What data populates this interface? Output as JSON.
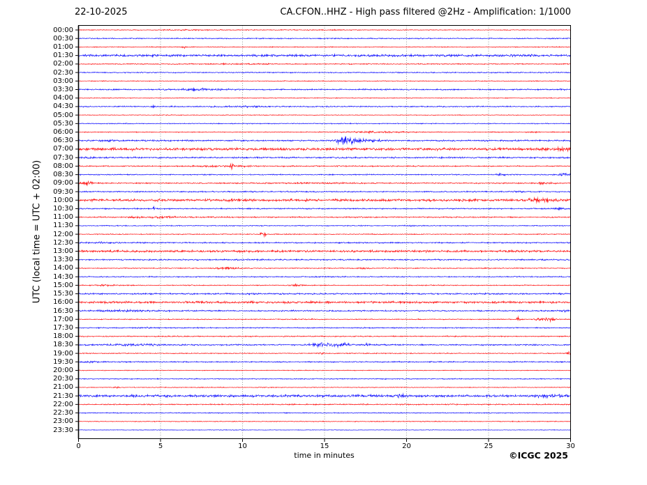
{
  "header": {
    "date": "22-10-2025",
    "title": "CA.CFON..HHZ - High pass filtered @2Hz - Amplification: 1/1000"
  },
  "axes": {
    "y_label": "UTC (local time = UTC + 02:00)",
    "x_label": "time in minutes"
  },
  "footer": {
    "copyright": "©ICGC 2025"
  },
  "colors": {
    "trace_red": "#ff0000",
    "trace_blue": "#0000ff",
    "grid": "#777777",
    "axis": "#000000",
    "background": "#ffffff"
  },
  "chart_data": {
    "type": "line",
    "subtype": "helicorder-seismogram",
    "title": "CA.CFON..HHZ - High pass filtered @2Hz - Amplification: 1/1000",
    "date_label": "22-10-2025",
    "x_range": [
      0,
      30
    ],
    "x_ticks": [
      0,
      5,
      10,
      15,
      20,
      25,
      30
    ],
    "grid_minutes": [
      5,
      10,
      15,
      20,
      25
    ],
    "minutes_per_line": 30,
    "xlabel": "time in minutes",
    "ylabel": "UTC (local time = UTC + 02:00)",
    "rows": [
      {
        "time": "00:00",
        "color": "red",
        "noise": 0.5,
        "events": [
          [
            6.8,
            1.5,
            0.35
          ],
          [
            14.5,
            2,
            0.25
          ]
        ]
      },
      {
        "time": "00:30",
        "color": "blue",
        "noise": 0.7,
        "events": []
      },
      {
        "time": "01:00",
        "color": "red",
        "noise": 0.55,
        "events": [
          [
            6.45,
            0.06,
            1.8
          ]
        ]
      },
      {
        "time": "01:30",
        "color": "blue",
        "noise": 1.5,
        "events": []
      },
      {
        "time": "02:00",
        "color": "red",
        "noise": 0.7,
        "events": [
          [
            9.6,
            1.5,
            0.35
          ]
        ]
      },
      {
        "time": "02:30",
        "color": "blue",
        "noise": 0.7,
        "events": []
      },
      {
        "time": "03:00",
        "color": "red",
        "noise": 0.5,
        "events": []
      },
      {
        "time": "03:30",
        "color": "blue",
        "noise": 0.85,
        "events": [
          [
            7.6,
            1.3,
            0.9
          ]
        ]
      },
      {
        "time": "04:00",
        "color": "red",
        "noise": 0.5,
        "events": []
      },
      {
        "time": "04:30",
        "color": "blue",
        "noise": 0.75,
        "events": [
          [
            4.55,
            0.07,
            1.9
          ],
          [
            10.2,
            1.0,
            0.6
          ]
        ]
      },
      {
        "time": "05:00",
        "color": "red",
        "noise": 0.45,
        "events": []
      },
      {
        "time": "05:30",
        "color": "blue",
        "noise": 0.6,
        "events": []
      },
      {
        "time": "06:00",
        "color": "red",
        "noise": 0.55,
        "events": [
          [
            18,
            1.3,
            0.9
          ],
          [
            27.8,
            0.25,
            0.8
          ]
        ]
      },
      {
        "time": "06:30",
        "color": "blue",
        "noise": 0.95,
        "events": [
          [
            16.35,
            0.4,
            5.2
          ],
          [
            17.4,
            0.5,
            1.4
          ],
          [
            18.45,
            0.12,
            1.0
          ],
          [
            2.2,
            1.5,
            0.45
          ]
        ]
      },
      {
        "time": "07:00",
        "color": "red",
        "noise": 1.7,
        "events": [
          [
            29.3,
            0.7,
            0.9
          ]
        ]
      },
      {
        "time": "07:30",
        "color": "blue",
        "noise": 1.0,
        "events": [
          [
            0.6,
            0.5,
            0.6
          ]
        ]
      },
      {
        "time": "08:00",
        "color": "red",
        "noise": 0.75,
        "events": [
          [
            9.35,
            0.08,
            3.2
          ],
          [
            9.0,
            1.2,
            0.7
          ]
        ]
      },
      {
        "time": "08:30",
        "color": "blue",
        "noise": 0.7,
        "events": [
          [
            25.75,
            0.15,
            1.9
          ],
          [
            29.6,
            0.25,
            1.9
          ]
        ]
      },
      {
        "time": "09:00",
        "color": "red",
        "noise": 0.8,
        "events": [
          [
            0.55,
            0.25,
            2.3
          ],
          [
            14.2,
            1.5,
            0.45
          ],
          [
            28.5,
            0.45,
            1.0
          ]
        ]
      },
      {
        "time": "09:30",
        "color": "blue",
        "noise": 0.8,
        "events": [
          [
            26.8,
            0.3,
            0.8
          ]
        ]
      },
      {
        "time": "10:00",
        "color": "red",
        "noise": 1.6,
        "events": [
          [
            27.8,
            0.18,
            1.5
          ],
          [
            28.6,
            1.2,
            0.7
          ]
        ]
      },
      {
        "time": "10:30",
        "color": "blue",
        "noise": 0.8,
        "events": [
          [
            4.6,
            0.07,
            1.9
          ],
          [
            29.4,
            0.2,
            1.7
          ]
        ]
      },
      {
        "time": "11:00",
        "color": "red",
        "noise": 0.8,
        "events": [
          [
            4.5,
            1.6,
            0.55
          ]
        ]
      },
      {
        "time": "11:30",
        "color": "blue",
        "noise": 0.6,
        "events": [
          [
            20.3,
            0.3,
            0.5
          ]
        ]
      },
      {
        "time": "12:00",
        "color": "red",
        "noise": 0.6,
        "events": [
          [
            11.1,
            0.07,
            2.7
          ],
          [
            11.35,
            0.07,
            2.3
          ]
        ]
      },
      {
        "time": "12:30",
        "color": "blue",
        "noise": 0.8,
        "events": [
          [
            1.2,
            1.0,
            0.5
          ]
        ]
      },
      {
        "time": "13:00",
        "color": "red",
        "noise": 1.4,
        "events": []
      },
      {
        "time": "13:30",
        "color": "blue",
        "noise": 0.9,
        "events": []
      },
      {
        "time": "14:00",
        "color": "red",
        "noise": 0.65,
        "events": [
          [
            9.1,
            0.45,
            1.1
          ],
          [
            17.5,
            0.3,
            0.5
          ]
        ]
      },
      {
        "time": "14:30",
        "color": "blue",
        "noise": 0.7,
        "events": [
          [
            14.9,
            0.3,
            0.5
          ]
        ]
      },
      {
        "time": "15:00",
        "color": "red",
        "noise": 0.6,
        "events": [
          [
            1.5,
            0.4,
            1.0
          ],
          [
            13.3,
            0.3,
            1.0
          ]
        ]
      },
      {
        "time": "15:30",
        "color": "blue",
        "noise": 1.0,
        "events": []
      },
      {
        "time": "16:00",
        "color": "red",
        "noise": 1.4,
        "events": []
      },
      {
        "time": "16:30",
        "color": "blue",
        "noise": 0.9,
        "events": [
          [
            2.8,
            1.2,
            0.8
          ],
          [
            29.6,
            0.3,
            0.9
          ]
        ]
      },
      {
        "time": "17:00",
        "color": "red",
        "noise": 0.6,
        "events": [
          [
            26.8,
            0.07,
            2.7
          ],
          [
            28.1,
            0.25,
            1.6
          ],
          [
            28.75,
            0.25,
            1.6
          ]
        ]
      },
      {
        "time": "17:30",
        "color": "blue",
        "noise": 0.7,
        "events": [
          [
            4.1,
            0.4,
            0.6
          ]
        ]
      },
      {
        "time": "18:00",
        "color": "red",
        "noise": 0.7,
        "events": []
      },
      {
        "time": "18:30",
        "color": "blue",
        "noise": 0.9,
        "events": [
          [
            3.5,
            1.4,
            0.7
          ],
          [
            14.7,
            0.4,
            2.3
          ],
          [
            15.95,
            0.5,
            2.0
          ],
          [
            17.6,
            0.12,
            1.0
          ]
        ]
      },
      {
        "time": "19:00",
        "color": "red",
        "noise": 0.6,
        "events": [
          [
            14.85,
            0.08,
            2.3
          ],
          [
            29.9,
            0.1,
            1.9
          ]
        ]
      },
      {
        "time": "19:30",
        "color": "blue",
        "noise": 0.75,
        "events": [
          [
            0.6,
            0.4,
            0.6
          ]
        ]
      },
      {
        "time": "20:00",
        "color": "red",
        "noise": 0.5,
        "events": []
      },
      {
        "time": "20:30",
        "color": "blue",
        "noise": 0.6,
        "events": []
      },
      {
        "time": "21:00",
        "color": "red",
        "noise": 0.5,
        "events": [
          [
            2.35,
            0.07,
            2.3
          ]
        ]
      },
      {
        "time": "21:30",
        "color": "blue",
        "noise": 1.55,
        "events": [
          [
            19.65,
            0.2,
            2.1
          ],
          [
            29,
            0.9,
            0.7
          ]
        ]
      },
      {
        "time": "22:00",
        "color": "red",
        "noise": 0.75,
        "events": []
      },
      {
        "time": "22:30",
        "color": "blue",
        "noise": 0.6,
        "events": []
      },
      {
        "time": "23:00",
        "color": "red",
        "noise": 0.55,
        "events": []
      },
      {
        "time": "23:30",
        "color": "blue",
        "noise": 0.4,
        "events": []
      }
    ]
  }
}
